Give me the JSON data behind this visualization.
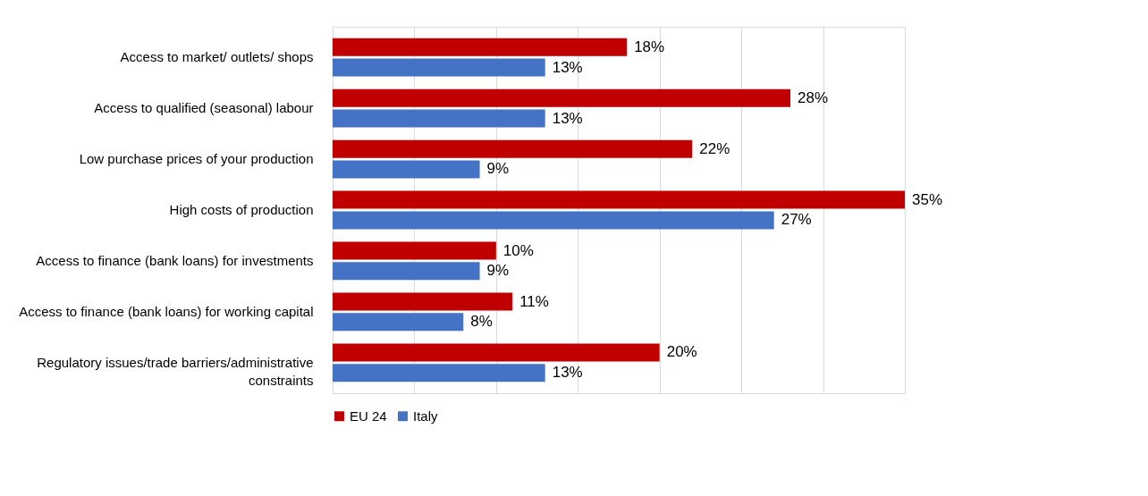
{
  "chart_data": {
    "type": "bar",
    "orientation": "horizontal",
    "categories": [
      "Access to market/ outlets/ shops",
      "Access to qualified (seasonal) labour",
      "Low purchase prices of your production",
      "High costs of production",
      "Access to finance (bank loans) for investments",
      "Access to finance (bank loans) for working capital",
      "Regulatory issues/trade barriers/administrative constraints"
    ],
    "series": [
      {
        "name": "EU 24",
        "color": "#c00000",
        "values": [
          18,
          28,
          22,
          35,
          10,
          11,
          20
        ],
        "value_labels": [
          "18%",
          "28%",
          "22%",
          "35%",
          "10%",
          "11%",
          "20%"
        ]
      },
      {
        "name": "Italy",
        "color": "#4472c4",
        "values": [
          13,
          13,
          9,
          27,
          9,
          8,
          13
        ],
        "value_labels": [
          "13%",
          "13%",
          "9%",
          "27%",
          "9%",
          "8%",
          "13%"
        ]
      }
    ],
    "grid": "x",
    "legend": "bottom",
    "tick_labels": "y"
  }
}
